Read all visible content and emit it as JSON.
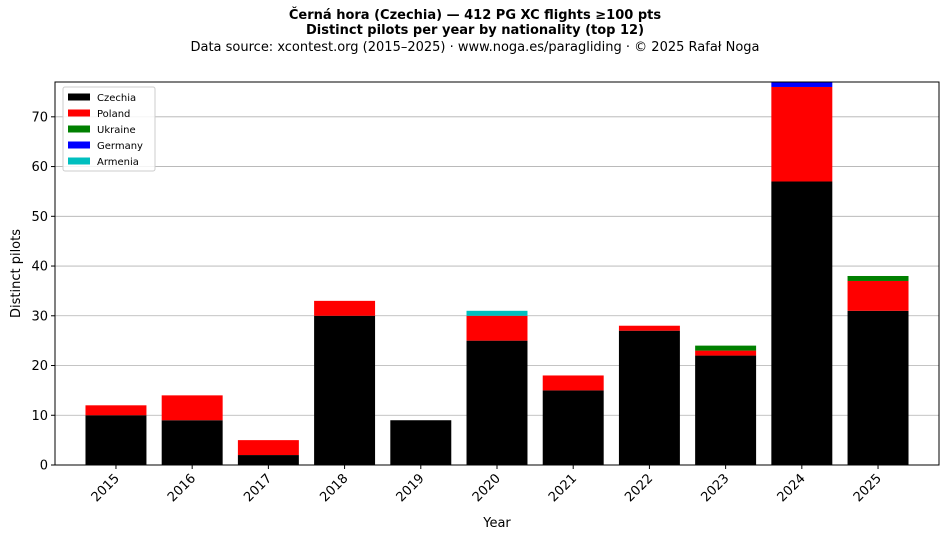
{
  "title": "Černá hora (Czechia)  —  412 PG XC flights ≥100 pts",
  "subtitle": "Distinct pilots per year by nationality (top 12)",
  "source": "Data source: xcontest.org (2015–2025)  ·  www.noga.es/paragliding  ·  © 2025 Rafał Noga",
  "chart_data": {
    "type": "bar",
    "stacked": true,
    "xlabel": "Year",
    "ylabel": "Distinct pilots",
    "ylim": [
      0,
      77
    ],
    "yticks": [
      0,
      10,
      20,
      30,
      40,
      50,
      60,
      70
    ],
    "grid": "y",
    "legend_position": "top-left",
    "categories": [
      "2015",
      "2016",
      "2017",
      "2018",
      "2019",
      "2020",
      "2021",
      "2022",
      "2023",
      "2024",
      "2025"
    ],
    "series": [
      {
        "name": "Czechia",
        "color": "#000000",
        "values": [
          10,
          9,
          2,
          30,
          9,
          25,
          15,
          27,
          22,
          57,
          31
        ]
      },
      {
        "name": "Poland",
        "color": "#ff0000",
        "values": [
          2,
          5,
          3,
          3,
          0,
          5,
          3,
          1,
          1,
          19,
          6
        ]
      },
      {
        "name": "Ukraine",
        "color": "#008000",
        "values": [
          0,
          0,
          0,
          0,
          0,
          0,
          0,
          0,
          1,
          0,
          1
        ]
      },
      {
        "name": "Germany",
        "color": "#0000ff",
        "values": [
          0,
          0,
          0,
          0,
          0,
          0,
          0,
          0,
          0,
          1,
          0
        ]
      },
      {
        "name": "Armenia",
        "color": "#00bfbf",
        "values": [
          0,
          0,
          0,
          0,
          0,
          1,
          0,
          0,
          0,
          0,
          0
        ]
      }
    ]
  }
}
